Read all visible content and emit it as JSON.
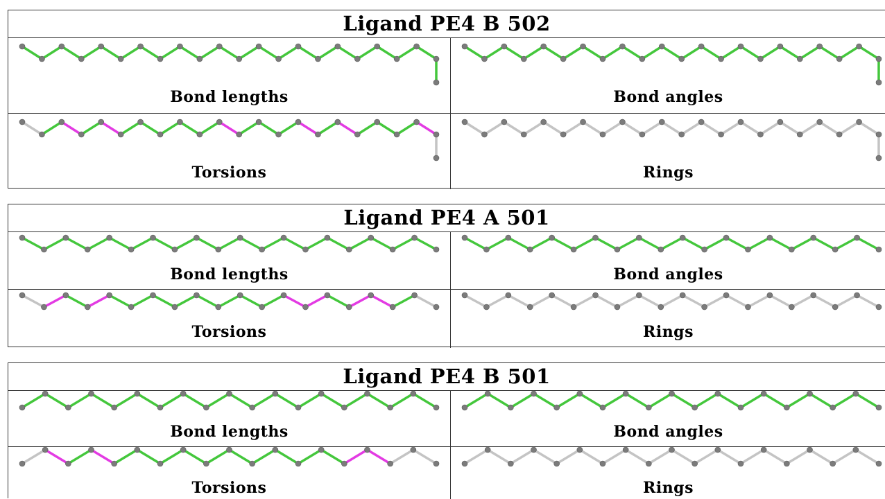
{
  "colors": {
    "ok": "#44c73c",
    "outlier": "#e33be3",
    "neutral": "#c4c4c4",
    "atom": "#7b7b7b"
  },
  "panels": [
    {
      "title": "Ligand PE4 B 502",
      "cells": [
        {
          "label": "Bond lengths",
          "bond_colors": [
            "ok",
            "ok",
            "ok",
            "ok",
            "ok",
            "ok",
            "ok",
            "ok",
            "ok",
            "ok",
            "ok",
            "ok",
            "ok",
            "ok",
            "ok",
            "ok",
            "ok",
            "ok",
            "ok",
            "ok",
            "ok",
            "ok"
          ]
        },
        {
          "label": "Bond angles",
          "bond_colors": [
            "ok",
            "ok",
            "ok",
            "ok",
            "ok",
            "ok",
            "ok",
            "ok",
            "ok",
            "ok",
            "ok",
            "ok",
            "ok",
            "ok",
            "ok",
            "ok",
            "ok",
            "ok",
            "ok",
            "ok",
            "ok",
            "ok"
          ]
        },
        {
          "label": "Torsions",
          "bond_colors": [
            "neutral",
            "ok",
            "outlier",
            "ok",
            "outlier",
            "ok",
            "ok",
            "ok",
            "ok",
            "ok",
            "outlier",
            "ok",
            "ok",
            "ok",
            "outlier",
            "ok",
            "outlier",
            "ok",
            "ok",
            "ok",
            "outlier",
            "neutral"
          ]
        },
        {
          "label": "Rings",
          "bond_colors": [
            "neutral",
            "neutral",
            "neutral",
            "neutral",
            "neutral",
            "neutral",
            "neutral",
            "neutral",
            "neutral",
            "neutral",
            "neutral",
            "neutral",
            "neutral",
            "neutral",
            "neutral",
            "neutral",
            "neutral",
            "neutral",
            "neutral",
            "neutral",
            "neutral",
            "neutral"
          ]
        }
      ]
    },
    {
      "title": "Ligand PE4 A 501",
      "cells": [
        {
          "label": "Bond lengths",
          "bond_colors": [
            "ok",
            "ok",
            "ok",
            "ok",
            "ok",
            "ok",
            "ok",
            "ok",
            "ok",
            "ok",
            "ok",
            "ok",
            "ok",
            "ok",
            "ok",
            "ok",
            "ok",
            "ok",
            "ok"
          ]
        },
        {
          "label": "Bond angles",
          "bond_colors": [
            "ok",
            "ok",
            "ok",
            "ok",
            "ok",
            "ok",
            "ok",
            "ok",
            "ok",
            "ok",
            "ok",
            "ok",
            "ok",
            "ok",
            "ok",
            "ok",
            "ok",
            "ok",
            "ok"
          ]
        },
        {
          "label": "Torsions",
          "bond_colors": [
            "neutral",
            "outlier",
            "ok",
            "outlier",
            "ok",
            "ok",
            "ok",
            "ok",
            "ok",
            "ok",
            "ok",
            "ok",
            "outlier",
            "outlier",
            "ok",
            "outlier",
            "outlier",
            "ok",
            "neutral"
          ]
        },
        {
          "label": "Rings",
          "bond_colors": [
            "neutral",
            "neutral",
            "neutral",
            "neutral",
            "neutral",
            "neutral",
            "neutral",
            "neutral",
            "neutral",
            "neutral",
            "neutral",
            "neutral",
            "neutral",
            "neutral",
            "neutral",
            "neutral",
            "neutral",
            "neutral",
            "neutral"
          ]
        }
      ]
    },
    {
      "title": "Ligand PE4 B 501",
      "cells": [
        {
          "label": "Bond lengths",
          "bond_colors": [
            "ok",
            "ok",
            "ok",
            "ok",
            "ok",
            "ok",
            "ok",
            "ok",
            "ok",
            "ok",
            "ok",
            "ok",
            "ok",
            "ok",
            "ok",
            "ok",
            "ok",
            "ok"
          ]
        },
        {
          "label": "Bond angles",
          "bond_colors": [
            "ok",
            "ok",
            "ok",
            "ok",
            "ok",
            "ok",
            "ok",
            "ok",
            "ok",
            "ok",
            "ok",
            "ok",
            "ok",
            "ok",
            "ok",
            "ok",
            "ok",
            "ok"
          ]
        },
        {
          "label": "Torsions",
          "bond_colors": [
            "neutral",
            "outlier",
            "ok",
            "outlier",
            "ok",
            "ok",
            "ok",
            "ok",
            "ok",
            "ok",
            "ok",
            "ok",
            "ok",
            "ok",
            "outlier",
            "outlier",
            "neutral",
            "neutral"
          ]
        },
        {
          "label": "Rings",
          "bond_colors": [
            "neutral",
            "neutral",
            "neutral",
            "neutral",
            "neutral",
            "neutral",
            "neutral",
            "neutral",
            "neutral",
            "neutral",
            "neutral",
            "neutral",
            "neutral",
            "neutral",
            "neutral",
            "neutral",
            "neutral",
            "neutral"
          ]
        }
      ]
    }
  ]
}
